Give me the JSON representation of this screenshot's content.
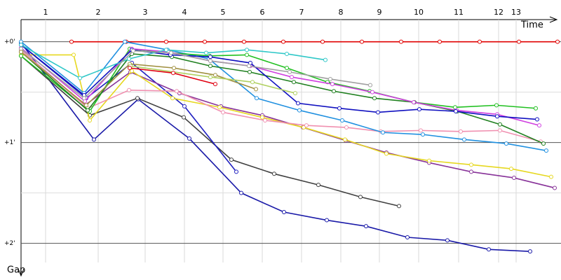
{
  "chart_data": {
    "type": "line",
    "x_label": "Time",
    "y_label": "Gap",
    "xlim": [
      0,
      770
    ],
    "ylim": [
      -0.22,
      2.19
    ],
    "xticks": [
      {
        "value": 35,
        "label": "1"
      },
      {
        "value": 110,
        "label": "2"
      },
      {
        "value": 177,
        "label": "3"
      },
      {
        "value": 233,
        "label": "4"
      },
      {
        "value": 288,
        "label": "5"
      },
      {
        "value": 344,
        "label": "6"
      },
      {
        "value": 400,
        "label": "7"
      },
      {
        "value": 456,
        "label": "8"
      },
      {
        "value": 511,
        "label": "9"
      },
      {
        "value": 567,
        "label": "10"
      },
      {
        "value": 624,
        "label": "11"
      },
      {
        "value": 681,
        "label": "12"
      },
      {
        "value": 706,
        "label": "13"
      }
    ],
    "yticks": [
      {
        "value": 0,
        "label": "+0'"
      },
      {
        "value": 1,
        "label": "+1'"
      },
      {
        "value": 2,
        "label": "+2'"
      }
    ],
    "yminor": [
      0.5,
      1.5
    ],
    "grid": true,
    "series": [
      {
        "color": "#e00000",
        "x": [
          72,
          150,
          207,
          262,
          318,
          374,
          430,
          486,
          542,
          597,
          654,
          710,
          765
        ],
        "values": [
          0,
          0,
          0,
          0,
          0,
          0,
          0,
          0,
          0,
          0,
          0,
          0,
          0
        ]
      },
      {
        "color": "#1a1aa8",
        "x": [
          0,
          104,
          167,
          240,
          314,
          375,
          436,
          492,
          551,
          608,
          667,
          726
        ],
        "values": [
          0.01,
          0.97,
          0.57,
          0.96,
          1.5,
          1.69,
          1.77,
          1.83,
          1.94,
          1.97,
          2.06,
          2.08
        ]
      },
      {
        "color": "#404040",
        "x": [
          0,
          98,
          166,
          232,
          300,
          361,
          424,
          484,
          539
        ],
        "values": [
          0.14,
          0.73,
          0.56,
          0.75,
          1.17,
          1.31,
          1.42,
          1.54,
          1.63
        ]
      },
      {
        "color": "#2020c0",
        "x": [
          0,
          93,
          158,
          233,
          307
        ],
        "values": [
          0.03,
          0.56,
          0.21,
          0.64,
          1.29
        ]
      },
      {
        "color": "#883399",
        "x": [
          0,
          91,
          156,
          226,
          285,
          344,
          402,
          463,
          521,
          582,
          642,
          703,
          761
        ],
        "values": [
          0.08,
          0.63,
          0.3,
          0.51,
          0.64,
          0.73,
          0.85,
          0.98,
          1.1,
          1.2,
          1.29,
          1.35,
          1.45
        ]
      },
      {
        "color": "#e6d820",
        "x": [
          0,
          75,
          98,
          158,
          216,
          283,
          344,
          403,
          462,
          521,
          582,
          642,
          699,
          756
        ],
        "values": [
          0.13,
          0.13,
          0.78,
          0.29,
          0.56,
          0.65,
          0.75,
          0.85,
          0.97,
          1.11,
          1.18,
          1.22,
          1.26,
          1.34
        ]
      },
      {
        "color": "#f090b0",
        "x": [
          0,
          95,
          154,
          222,
          288,
          348,
          407,
          464,
          513,
          570,
          627,
          683,
          741
        ],
        "values": [
          0.08,
          0.66,
          0.48,
          0.49,
          0.7,
          0.78,
          0.83,
          0.85,
          0.89,
          0.88,
          0.89,
          0.88,
          0.99
        ]
      },
      {
        "color": "#2090e0",
        "x": [
          0,
          90,
          148,
          209,
          268,
          336,
          397,
          458,
          516,
          573,
          632,
          692,
          749
        ],
        "values": [
          0,
          0.51,
          0,
          0.08,
          0.17,
          0.56,
          0.68,
          0.78,
          0.9,
          0.92,
          0.97,
          1.01,
          1.08
        ]
      },
      {
        "color": "#20c020",
        "x": [
          0,
          98,
          155,
          214,
          269,
          322,
          379,
          437,
          497,
          560,
          619,
          678,
          734
        ],
        "values": [
          0.14,
          0.69,
          0.07,
          0.11,
          0.14,
          0.13,
          0.26,
          0.4,
          0.49,
          0.6,
          0.65,
          0.63,
          0.66
        ]
      },
      {
        "color": "#208020",
        "x": [
          0,
          95,
          158,
          215,
          270,
          326,
          389,
          446,
          504,
          561,
          622,
          683,
          745
        ],
        "values": [
          0.1,
          0.68,
          0.12,
          0.15,
          0.24,
          0.3,
          0.4,
          0.49,
          0.56,
          0.6,
          0.69,
          0.82,
          1.01
        ]
      },
      {
        "color": "#d040e0",
        "x": [
          0,
          91,
          158,
          210,
          270,
          327,
          386,
          444,
          501,
          560,
          621,
          679,
          739
        ],
        "values": [
          0.06,
          0.59,
          0.07,
          0.1,
          0.19,
          0.24,
          0.35,
          0.42,
          0.5,
          0.6,
          0.68,
          0.72,
          0.83
        ]
      },
      {
        "color": "#1010c0",
        "x": [
          0,
          90,
          158,
          213,
          270,
          327,
          395,
          454,
          509,
          568,
          620,
          679,
          736
        ],
        "values": [
          0.03,
          0.53,
          0.08,
          0.13,
          0.15,
          0.21,
          0.61,
          0.66,
          0.7,
          0.67,
          0.69,
          0.74,
          0.77
        ]
      },
      {
        "color": "#30c8c8",
        "x": [
          0,
          84,
          154,
          207,
          264,
          322,
          379,
          434
        ],
        "values": [
          0.03,
          0.36,
          0.17,
          0.08,
          0.11,
          0.08,
          0.12,
          0.18
        ]
      },
      {
        "color": "#a0a0a0",
        "x": [
          0,
          90,
          160,
          214,
          270,
          325,
          383,
          441,
          498
        ],
        "values": [
          0.07,
          0.56,
          0.09,
          0.11,
          0.19,
          0.24,
          0.3,
          0.37,
          0.43
        ]
      },
      {
        "color": "#a09040",
        "x": [
          0,
          93,
          155,
          218,
          277,
          335
        ],
        "values": [
          0.1,
          0.63,
          0.22,
          0.26,
          0.33,
          0.47
        ]
      },
      {
        "color": "#b0d060",
        "x": [
          156,
          270,
          330,
          391
        ],
        "values": [
          0.24,
          0.35,
          0.4,
          0.51
        ]
      },
      {
        "color": "#e00010",
        "x": [
          155,
          217,
          277
        ],
        "values": [
          0.26,
          0.31,
          0.42
        ]
      }
    ]
  }
}
